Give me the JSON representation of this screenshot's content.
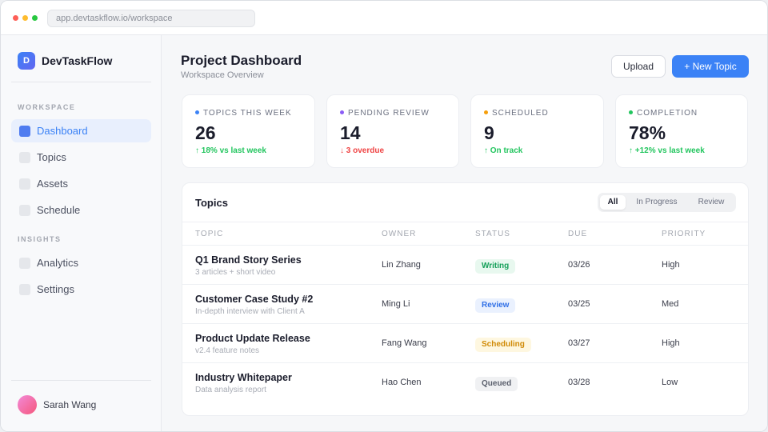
{
  "browser": {
    "url": "app.devtaskflow.io/workspace"
  },
  "sidebar": {
    "logo_letter": "D",
    "brand": "DevTaskFlow",
    "sections": [
      {
        "title": "WORKSPACE",
        "items": [
          {
            "label": "Dashboard",
            "active": true
          },
          {
            "label": "Topics"
          },
          {
            "label": "Assets"
          },
          {
            "label": "Schedule"
          }
        ]
      },
      {
        "title": "INSIGHTS",
        "items": [
          {
            "label": "Analytics"
          },
          {
            "label": "Settings"
          }
        ]
      }
    ],
    "user": {
      "name": "Sarah Wang"
    }
  },
  "header": {
    "title": "Project Dashboard",
    "subtitle": "Workspace Overview",
    "upload_label": "Upload",
    "new_topic_label": "+ New Topic"
  },
  "stats": [
    {
      "label": "TOPICS THIS WEEK",
      "value": "26",
      "trend": "↑ 18% vs last week",
      "dot": "#3b82f6",
      "trend_color": "#22c55e"
    },
    {
      "label": "PENDING REVIEW",
      "value": "14",
      "trend": "↓ 3 overdue",
      "dot": "#8b5cf6",
      "trend_color": "#ef4444"
    },
    {
      "label": "SCHEDULED",
      "value": "9",
      "trend": "↑ On track",
      "dot": "#f59e0b",
      "trend_color": "#22c55e"
    },
    {
      "label": "COMPLETION",
      "value": "78%",
      "trend": "↑ +12% vs last week",
      "dot": "#22c55e",
      "trend_color": "#22c55e"
    }
  ],
  "topics": {
    "title": "Topics",
    "filters": [
      "All",
      "In Progress",
      "Review"
    ],
    "active_filter": "All",
    "columns": [
      "TOPIC",
      "OWNER",
      "STATUS",
      "DUE",
      "PRIORITY"
    ],
    "rows": [
      {
        "title": "Q1 Brand Story Series",
        "subtitle": "3 articles + short video",
        "owner": "Lin Zhang",
        "status": "Writing",
        "due": "03/26",
        "priority": "High"
      },
      {
        "title": "Customer Case Study #2",
        "subtitle": "In-depth interview with Client A",
        "owner": "Ming Li",
        "status": "Review",
        "due": "03/25",
        "priority": "Med"
      },
      {
        "title": "Product Update Release",
        "subtitle": "v2.4 feature notes",
        "owner": "Fang Wang",
        "status": "Scheduling",
        "due": "03/27",
        "priority": "High"
      },
      {
        "title": "Industry Whitepaper",
        "subtitle": "Data analysis report",
        "owner": "Hao Chen",
        "status": "Queued",
        "due": "03/28",
        "priority": "Low"
      }
    ]
  },
  "status_colors": {
    "Writing": [
      "#e8f8ef",
      "#16a05a"
    ],
    "Review": [
      "#eaf1fe",
      "#2f6fe6"
    ],
    "Scheduling": [
      "#fef7e0",
      "#d08a06"
    ],
    "Queued": [
      "#f0f1f3",
      "#5a5f6c"
    ]
  }
}
